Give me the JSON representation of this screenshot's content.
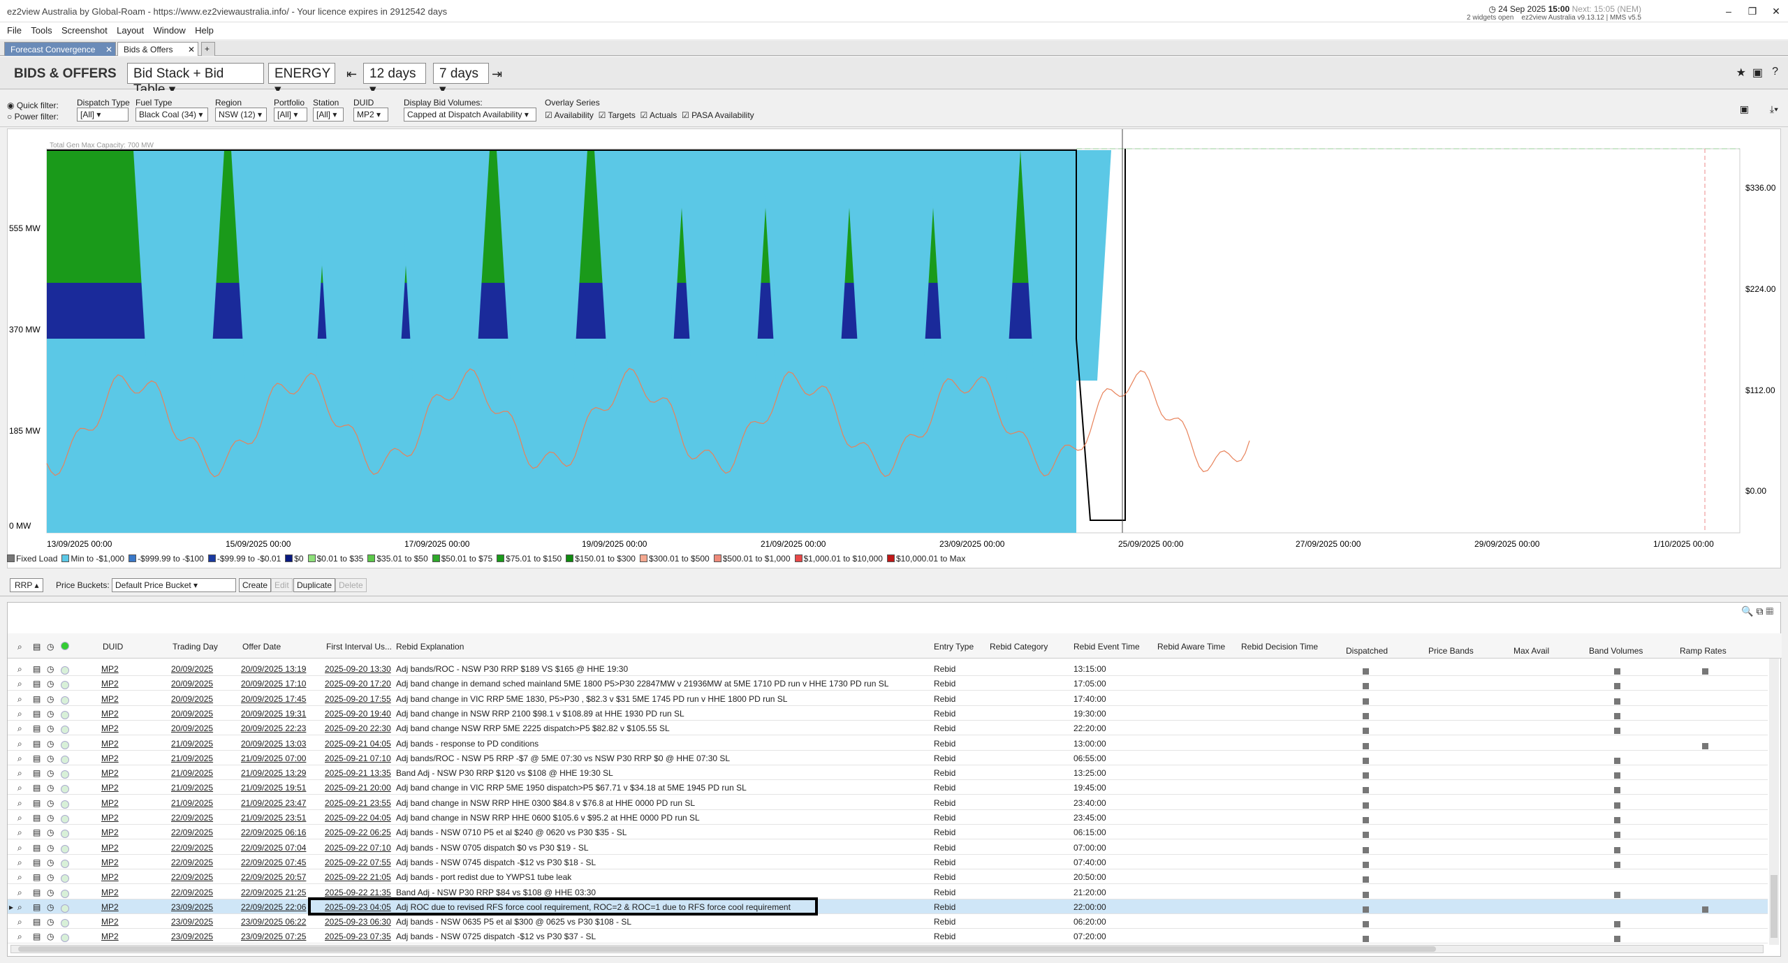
{
  "app": {
    "title": "ez2view Australia by Global-Roam - https://www.ez2viewaustralia.info/ - Your licence expires in 2912542 days",
    "menu": [
      "File",
      "Tools",
      "Screenshot",
      "Layout",
      "Window",
      "Help"
    ],
    "date": "24 Sep 2025",
    "time": "15:00",
    "next": "Next: 15:05 (NEM)",
    "widgets": "2 widgets open",
    "version": "ez2view Australia v9.13.12 | MMS v5.5"
  },
  "tabs": [
    "Forecast Convergence",
    "Bids & Offers"
  ],
  "toolbar": {
    "title": "BIDS & OFFERS",
    "view": "Bid Stack + Bid Table",
    "market": "ENERGY",
    "back_days": "12 days",
    "fwd_days": "7 days"
  },
  "filters": {
    "quick_filter": "Quick filter:",
    "power_filter": "Power filter:",
    "dispatch_type": {
      "label": "Dispatch Type",
      "value": "[All]"
    },
    "fuel_type": {
      "label": "Fuel Type",
      "value": "Black Coal (34)"
    },
    "region": {
      "label": "Region",
      "value": "NSW (12)"
    },
    "portfolio": {
      "label": "Portfolio",
      "value": "[All]"
    },
    "station": {
      "label": "Station",
      "value": "[All]"
    },
    "duid": {
      "label": "DUID",
      "value": "MP2"
    },
    "display_bid_volumes": {
      "label": "Display Bid Volumes:",
      "value": "Capped at Dispatch Availability"
    },
    "overlay": {
      "label": "Overlay Series",
      "items": [
        "Availability",
        "Targets",
        "Actuals",
        "PASA Availability"
      ]
    }
  },
  "chart_data": {
    "type": "area",
    "annotation": "Total Gen Max Capacity: 700 MW",
    "y_ticks_left": [
      "555 MW",
      "370 MW",
      "185 MW",
      "0 MW"
    ],
    "y_ticks_right": [
      "$336.00",
      "$224.00",
      "$112.00",
      "$0.00"
    ],
    "x_ticks": [
      "13/09/2025 00:00",
      "15/09/2025 00:00",
      "17/09/2025 00:00",
      "19/09/2025 00:00",
      "21/09/2025 00:00",
      "23/09/2025 00:00",
      "25/09/2025 00:00",
      "27/09/2025 00:00",
      "29/09/2025 00:00",
      "1/10/2025 00:00"
    ],
    "legend": [
      {
        "label": "Fixed Load",
        "color": "#777777"
      },
      {
        "label": "Min to -$1,000",
        "color": "#5bc8e6"
      },
      {
        "label": "-$999.99 to -$100",
        "color": "#3a78c8"
      },
      {
        "label": "-$99.99 to -$0.01",
        "color": "#1a3aa0"
      },
      {
        "label": "$0",
        "color": "#0a1a80"
      },
      {
        "label": "$0.01 to $35",
        "color": "#8ee07a"
      },
      {
        "label": "$35.01 to $50",
        "color": "#5cc84a"
      },
      {
        "label": "$50.01 to $75",
        "color": "#2ea82a"
      },
      {
        "label": "$75.01 to $150",
        "color": "#1a9a1a"
      },
      {
        "label": "$150.01 to $300",
        "color": "#108a10"
      },
      {
        "label": "$300.01 to $500",
        "color": "#f4a890"
      },
      {
        "label": "$500.01 to $1,000",
        "color": "#ee8a7a"
      },
      {
        "label": "$1,000.01 to $10,000",
        "color": "#e84848"
      },
      {
        "label": "$10,000.01 to Max",
        "color": "#c01818"
      }
    ]
  },
  "pricebar": {
    "rrp": "RRP",
    "label": "Price Buckets:",
    "bucket": "Default Price Bucket",
    "buttons": [
      "Create",
      "Edit",
      "Duplicate",
      "Delete"
    ]
  },
  "table": {
    "headers": [
      "DUID",
      "Trading Day",
      "Offer Date",
      "First Interval Us...",
      "Rebid Explanation",
      "Entry Type",
      "Rebid Category",
      "Rebid Event Time",
      "Rebid Aware Time",
      "Rebid Decision Time",
      "Dispatched",
      "Price Bands",
      "Max Avail",
      "Band Volumes",
      "Ramp Rates"
    ],
    "rows": [
      [
        "MP2",
        "20/09/2025",
        "20/09/2025 13:19",
        "2025-09-20 13:30",
        "Adj bands/ROC - NSW P30 RRP $189 VS $165 @ HHE 19:30",
        "Rebid",
        "13:15:00"
      ],
      [
        "MP2",
        "20/09/2025",
        "20/09/2025 17:10",
        "2025-09-20 17:20",
        "Adj band change in demand sched mainland 5ME 1800 P5>P30 22847MW v 21936MW at 5ME 1710 PD run v HHE 1730 PD run SL",
        "Rebid",
        "17:05:00"
      ],
      [
        "MP2",
        "20/09/2025",
        "20/09/2025 17:45",
        "2025-09-20 17:55",
        "Adj band change in VIC RRP 5ME 1830, P5>P30 , $82.3 v $31 5ME 1745 PD run v HHE 1800 PD run SL",
        "Rebid",
        "17:40:00"
      ],
      [
        "MP2",
        "20/09/2025",
        "20/09/2025 19:31",
        "2025-09-20 19:40",
        "Adj band change in NSW RRP 2100 $98.1 v $108.89 at HHE 1930 PD run SL",
        "Rebid",
        "19:30:00"
      ],
      [
        "MP2",
        "20/09/2025",
        "20/09/2025 22:23",
        "2025-09-20 22:30",
        "Adj band change NSW RRP 5ME 2225 dispatch>P5 $82.82 v $105.55 SL",
        "Rebid",
        "22:20:00"
      ],
      [
        "MP2",
        "21/09/2025",
        "20/09/2025 13:03",
        "2025-09-21 04:05",
        "Adj bands - response to PD conditions",
        "Rebid",
        "13:00:00"
      ],
      [
        "MP2",
        "21/09/2025",
        "21/09/2025 07:00",
        "2025-09-21 07:10",
        "Adj bands/ROC - NSW P5 RRP -$7 @ 5ME 07:30 vs NSW P30 RRP $0 @ HHE 07:30 SL",
        "Rebid",
        "06:55:00"
      ],
      [
        "MP2",
        "21/09/2025",
        "21/09/2025 13:29",
        "2025-09-21 13:35",
        "Band Adj - NSW P30 RRP $120 vs $108 @ HHE 19:30 SL",
        "Rebid",
        "13:25:00"
      ],
      [
        "MP2",
        "21/09/2025",
        "21/09/2025 19:51",
        "2025-09-21 20:00",
        "Adj band change in VIC RRP 5ME 1950 dispatch>P5 $67.71 v $34.18 at 5ME 1945 PD run SL",
        "Rebid",
        "19:45:00"
      ],
      [
        "MP2",
        "21/09/2025",
        "21/09/2025 23:47",
        "2025-09-21 23:55",
        "Adj band change in NSW RRP HHE 0300 $84.8 v $76.8 at HHE 0000 PD run SL",
        "Rebid",
        "23:40:00"
      ],
      [
        "MP2",
        "22/09/2025",
        "21/09/2025 23:51",
        "2025-09-22 04:05",
        "Adj band change in NSW RRP HHE 0600 $105.6 v $95.2 at HHE 0000 PD run SL",
        "Rebid",
        "23:45:00"
      ],
      [
        "MP2",
        "22/09/2025",
        "22/09/2025 06:16",
        "2025-09-22 06:25",
        "Adj bands - NSW 0710 P5 et al $240 @ 0620 vs P30 $35 - SL",
        "Rebid",
        "06:15:00"
      ],
      [
        "MP2",
        "22/09/2025",
        "22/09/2025 07:04",
        "2025-09-22 07:10",
        "Adj bands - NSW 0705 dispatch $0 vs P30 $19 - SL",
        "Rebid",
        "07:00:00"
      ],
      [
        "MP2",
        "22/09/2025",
        "22/09/2025 07:45",
        "2025-09-22 07:55",
        "Adj bands - NSW 0745 dispatch -$12 vs P30 $18 - SL",
        "Rebid",
        "07:40:00"
      ],
      [
        "MP2",
        "22/09/2025",
        "22/09/2025 20:57",
        "2025-09-22 21:05",
        "Adj bands - port redist due to YWPS1 tube leak",
        "Rebid",
        "20:50:00"
      ],
      [
        "MP2",
        "22/09/2025",
        "22/09/2025 21:25",
        "2025-09-22 21:35",
        "Band Adj - NSW P30 RRP $84 vs $108 @ HHE 03:30",
        "Rebid",
        "21:20:00"
      ],
      [
        "MP2",
        "23/09/2025",
        "22/09/2025 22:06",
        "2025-09-23 04:05",
        "Adj ROC due to revised RFS force cool requirement, ROC=2 & ROC=1 due to RFS force cool requirement",
        "Rebid",
        "22:00:00"
      ],
      [
        "MP2",
        "23/09/2025",
        "23/09/2025 06:22",
        "2025-09-23 06:30",
        "Adj bands - NSW 0635 P5 et al $300 @ 0625 vs P30 $108 - SL",
        "Rebid",
        "06:20:00"
      ],
      [
        "MP2",
        "23/09/2025",
        "23/09/2025 07:25",
        "2025-09-23 07:35",
        "Adj bands - NSW 0725 dispatch -$12 vs P30 $37 - SL",
        "Rebid",
        "07:20:00"
      ]
    ]
  }
}
